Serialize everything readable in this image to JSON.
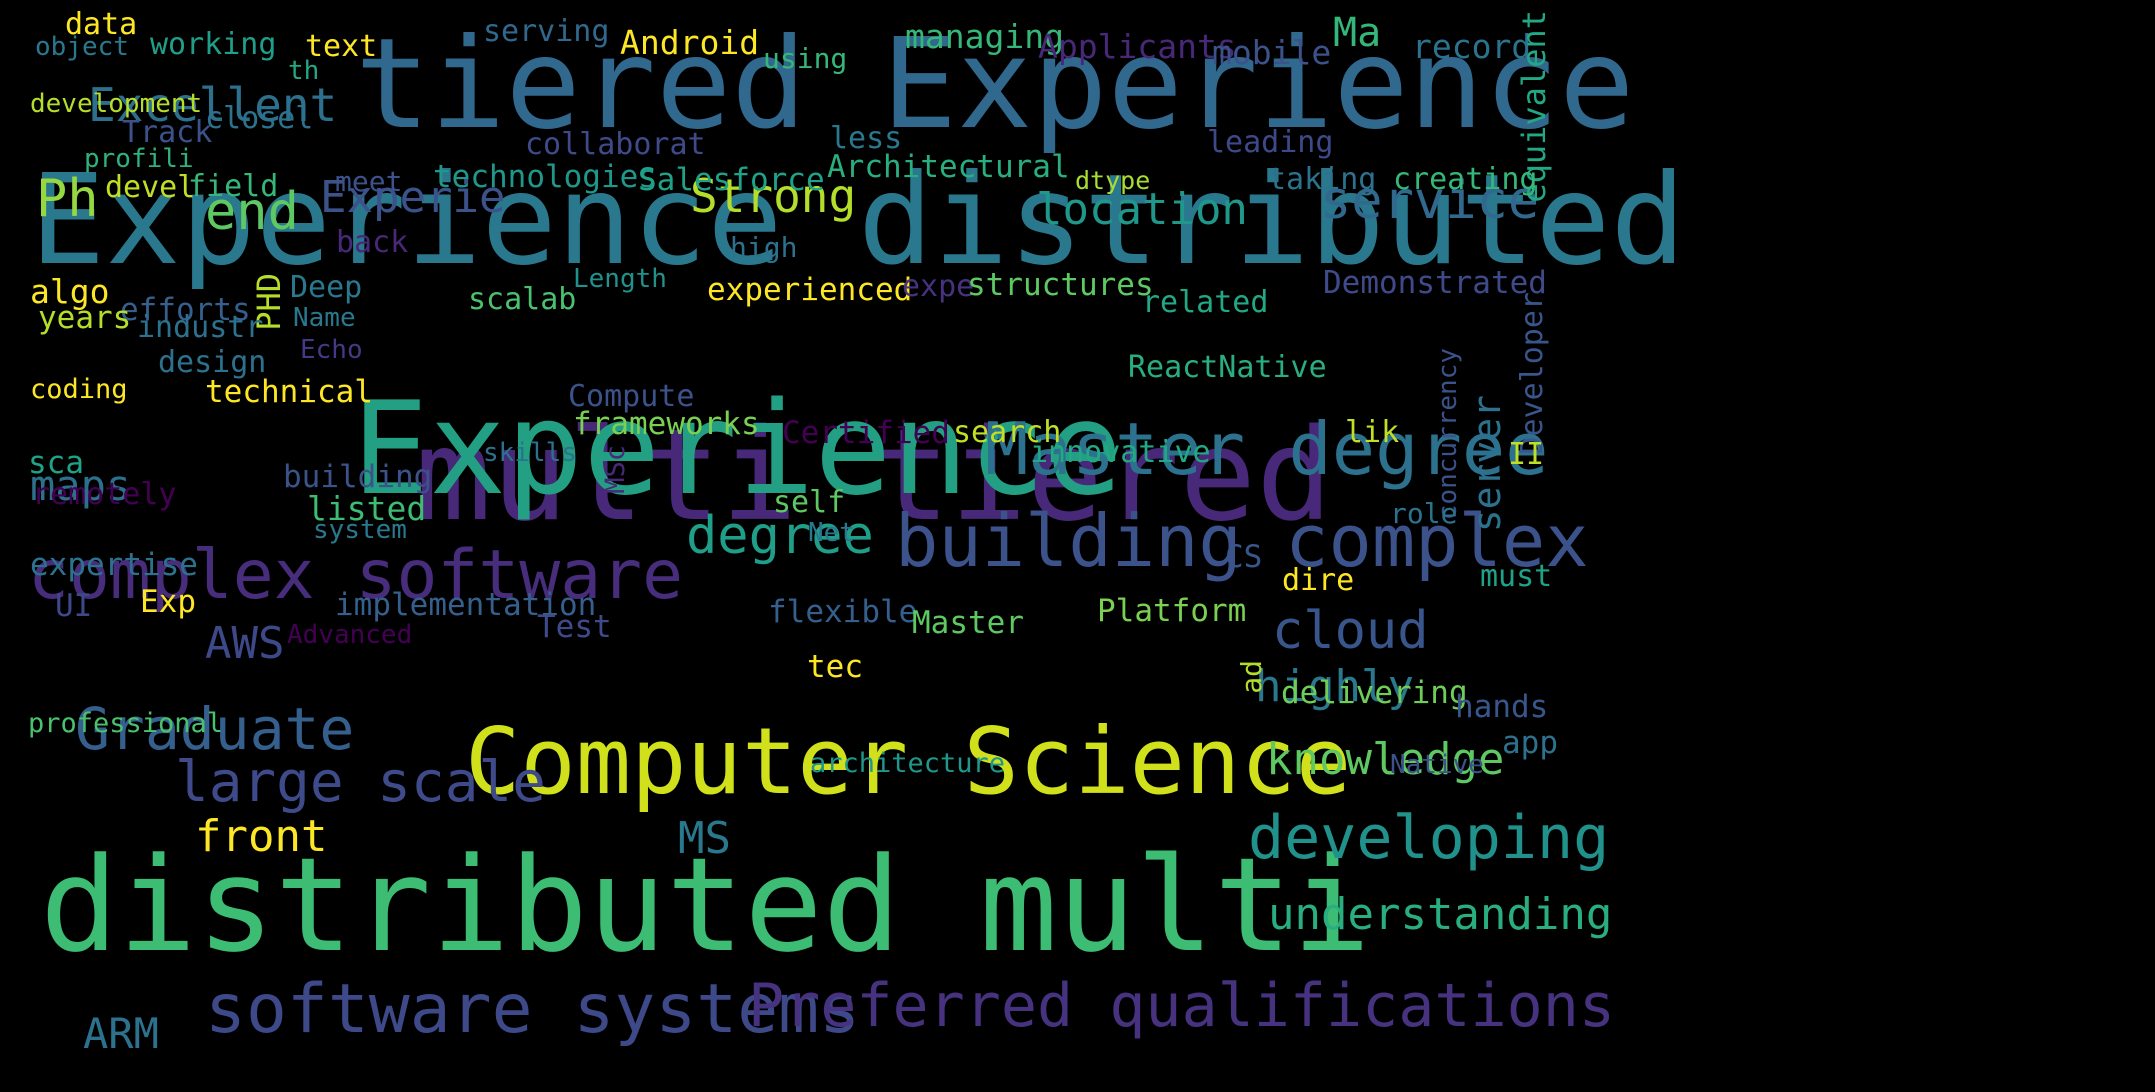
{
  "words": [
    {
      "text": "tiered Experience",
      "color": "#31688e"
    },
    {
      "text": "Experience distributed",
      "color": "#2a788e"
    },
    {
      "text": "multi tiered",
      "color": "#482878"
    },
    {
      "text": "distributed multi",
      "color": "#3dbc74"
    },
    {
      "text": "Experience",
      "color": "#23a083"
    },
    {
      "text": "Computer Science",
      "color": "#d0e11c"
    },
    {
      "text": "Master degree",
      "color": "#2c728e"
    },
    {
      "text": "building complex",
      "color": "#3b528b"
    },
    {
      "text": "complex software",
      "color": "#472d7b"
    },
    {
      "text": "software systems",
      "color": "#3e4989"
    },
    {
      "text": "Preferred qualifications",
      "color": "#46327e"
    },
    {
      "text": "large scale",
      "color": "#3e4a89"
    },
    {
      "text": "developing",
      "color": "#21918c"
    },
    {
      "text": "Graduate",
      "color": "#355f8d"
    },
    {
      "text": "understanding",
      "color": "#29af7f"
    },
    {
      "text": "degree",
      "color": "#1f9e89"
    },
    {
      "text": "Excellent",
      "color": "#2d708e"
    },
    {
      "text": "service",
      "color": "#31688e"
    },
    {
      "text": "location",
      "color": "#1f978b"
    },
    {
      "text": "cloud",
      "color": "#39568c"
    },
    {
      "text": "knowledge",
      "color": "#5ec962"
    },
    {
      "text": "highly",
      "color": "#2a788e"
    },
    {
      "text": "Strong",
      "color": "#b5de2b"
    },
    {
      "text": "Experie",
      "color": "#3b528b"
    },
    {
      "text": "end",
      "color": "#5ec962"
    },
    {
      "text": "Ph",
      "color": "#95d840"
    },
    {
      "text": "AWS",
      "color": "#3e4989"
    },
    {
      "text": "maps",
      "color": "#2d708e"
    },
    {
      "text": "front",
      "color": "#fde725"
    },
    {
      "text": "MS",
      "color": "#2a788e"
    },
    {
      "text": "ARM",
      "color": "#2c728e"
    },
    {
      "text": "Ma",
      "color": "#35b779"
    },
    {
      "text": "Android",
      "color": "#fde725"
    },
    {
      "text": "managing",
      "color": "#35b779"
    },
    {
      "text": "Applicants",
      "color": "#482878"
    },
    {
      "text": "mobile",
      "color": "#3b528b"
    },
    {
      "text": "record",
      "color": "#2c728e"
    },
    {
      "text": "equivalent",
      "color": "#22a884"
    },
    {
      "text": "serving",
      "color": "#31688e"
    },
    {
      "text": "using",
      "color": "#35b779"
    },
    {
      "text": "data",
      "color": "#fde725"
    },
    {
      "text": "text",
      "color": "#fde725"
    },
    {
      "text": "object",
      "color": "#2a788e"
    },
    {
      "text": "working",
      "color": "#1f9e89"
    },
    {
      "text": "th",
      "color": "#22a884"
    },
    {
      "text": "development",
      "color": "#b5de2b"
    },
    {
      "text": "closel",
      "color": "#2c728e"
    },
    {
      "text": "Track",
      "color": "#3b528b"
    },
    {
      "text": "profili",
      "color": "#2db27d"
    },
    {
      "text": "collaborat",
      "color": "#3e4a89"
    },
    {
      "text": "less",
      "color": "#2a788e"
    },
    {
      "text": "Architectural",
      "color": "#29af7f"
    },
    {
      "text": "leading",
      "color": "#3e4989"
    },
    {
      "text": "devel",
      "color": "#c2df23"
    },
    {
      "text": "field",
      "color": "#35b779"
    },
    {
      "text": "meet",
      "color": "#3b528b"
    },
    {
      "text": "technologies",
      "color": "#1f988b"
    },
    {
      "text": "Salesforce",
      "color": "#1fa287"
    },
    {
      "text": "dtype",
      "color": "#aadc32"
    },
    {
      "text": "taking",
      "color": "#2c728e"
    },
    {
      "text": "creating",
      "color": "#35b779"
    },
    {
      "text": "back",
      "color": "#482878"
    },
    {
      "text": "high",
      "color": "#2c728e"
    },
    {
      "text": "algo",
      "color": "#fde725"
    },
    {
      "text": "PHD",
      "color": "#b5de2b"
    },
    {
      "text": "Deep",
      "color": "#2a788e"
    },
    {
      "text": "Length",
      "color": "#21918c"
    },
    {
      "text": "experienced",
      "color": "#fde725"
    },
    {
      "text": "expe",
      "color": "#46327e"
    },
    {
      "text": "structures",
      "color": "#5ec962"
    },
    {
      "text": "Demonstrated",
      "color": "#3e4a89"
    },
    {
      "text": "efforts",
      "color": "#355f8d"
    },
    {
      "text": "years",
      "color": "#b5de2b"
    },
    {
      "text": "industr",
      "color": "#2c728e"
    },
    {
      "text": "Name",
      "color": "#2a788e"
    },
    {
      "text": "scalab",
      "color": "#4ac16d"
    },
    {
      "text": "related",
      "color": "#22a884"
    },
    {
      "text": "Developer",
      "color": "#39568c"
    },
    {
      "text": "design",
      "color": "#2c728e"
    },
    {
      "text": "Echo",
      "color": "#443983"
    },
    {
      "text": "ReactNative",
      "color": "#29af7f"
    },
    {
      "text": "coding",
      "color": "#fde725"
    },
    {
      "text": "technical",
      "color": "#fde725"
    },
    {
      "text": "Compute",
      "color": "#3b528b"
    },
    {
      "text": "concurrency",
      "color": "#3b528b"
    },
    {
      "text": "frameworks",
      "color": "#7ad151"
    },
    {
      "text": "Certified",
      "color": "#440154"
    },
    {
      "text": "search",
      "color": "#c2df23"
    },
    {
      "text": "lik",
      "color": "#c2df23"
    },
    {
      "text": "server",
      "color": "#2c728e"
    },
    {
      "text": "sca",
      "color": "#1fa287"
    },
    {
      "text": "skills",
      "color": "#2c728e"
    },
    {
      "text": "MSc",
      "color": "#482878"
    },
    {
      "text": "innovative",
      "color": "#22a884"
    },
    {
      "text": "II",
      "color": "#bddf26"
    },
    {
      "text": "remotely",
      "color": "#440154"
    },
    {
      "text": "building",
      "color": "#3b528b"
    },
    {
      "text": "listed",
      "color": "#3dbc74"
    },
    {
      "text": "self",
      "color": "#5ec962"
    },
    {
      "text": "system",
      "color": "#2a788e"
    },
    {
      "text": "Net",
      "color": "#2a788e"
    },
    {
      "text": "role",
      "color": "#2c728e"
    },
    {
      "text": "expertise",
      "color": "#2c728e"
    },
    {
      "text": "CS",
      "color": "#39568c"
    },
    {
      "text": "dire",
      "color": "#fde725"
    },
    {
      "text": "must",
      "color": "#1fa287"
    },
    {
      "text": "UI",
      "color": "#3e4989"
    },
    {
      "text": "Exp",
      "color": "#fde725"
    },
    {
      "text": "implementation",
      "color": "#355f8d"
    },
    {
      "text": "flexible",
      "color": "#355f8d"
    },
    {
      "text": "Platform",
      "color": "#7ad151"
    },
    {
      "text": "Test",
      "color": "#3e4a89"
    },
    {
      "text": "Master",
      "color": "#5ec962"
    },
    {
      "text": "Advanced",
      "color": "#440154"
    },
    {
      "text": "tec",
      "color": "#fde725"
    },
    {
      "text": "ad",
      "color": "#b5de2b"
    },
    {
      "text": "delivering",
      "color": "#6ece58"
    },
    {
      "text": "hands",
      "color": "#39568c"
    },
    {
      "text": "professional",
      "color": "#4ac16d"
    },
    {
      "text": "app",
      "color": "#2c728e"
    },
    {
      "text": "architecture",
      "color": "#1f988b"
    },
    {
      "text": "Native",
      "color": "#3b528b"
    }
  ]
}
